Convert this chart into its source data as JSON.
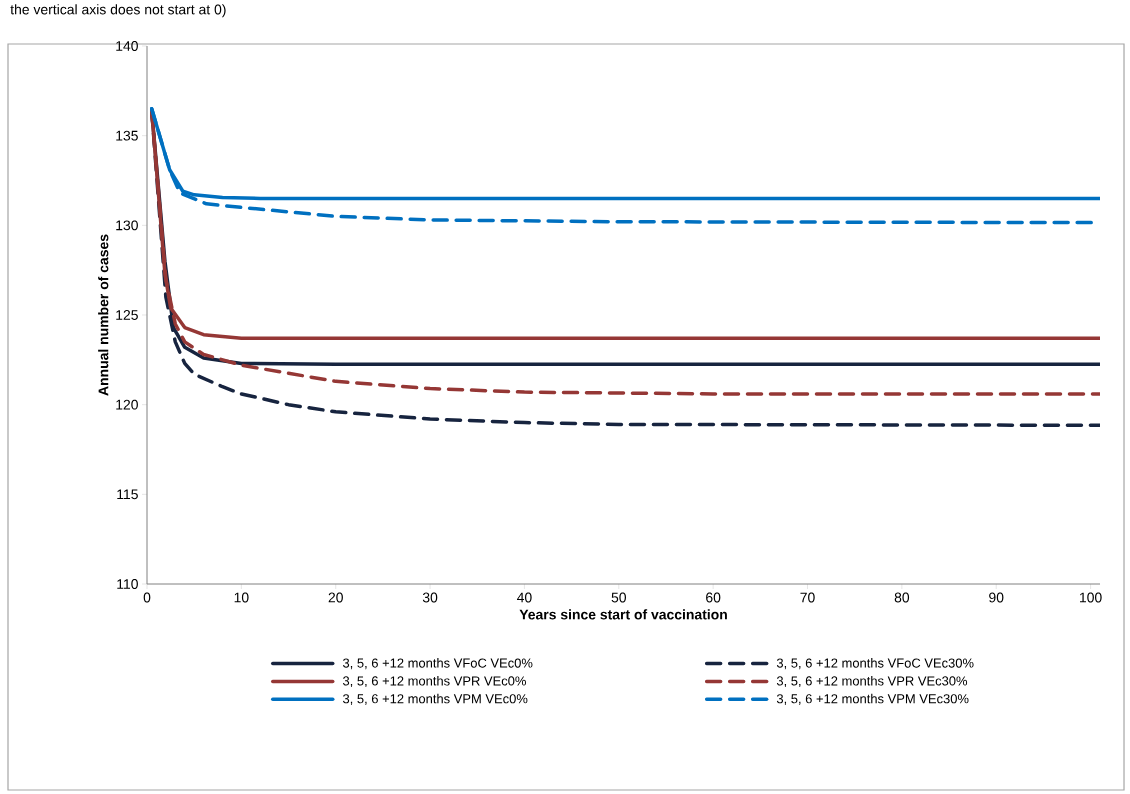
{
  "chart_data": {
    "type": "line",
    "xlabel": "Years since start of vaccination",
    "ylabel": "Annual number of cases",
    "annotations": [
      "the vertical axis does not start at 0)"
    ],
    "xlim": [
      0,
      101
    ],
    "ylim": [
      110,
      140
    ],
    "xticks": [
      0,
      10,
      20,
      30,
      40,
      50,
      60,
      70,
      80,
      90,
      100
    ],
    "yticks": [
      110,
      115,
      120,
      125,
      130,
      135,
      140
    ],
    "grid": false,
    "legend": "bottom",
    "marker": "none",
    "series": [
      {
        "name": "3, 5, 6 +12 months VFoC VEc0%",
        "color": "#17243f",
        "line_style": "solid",
        "x": [
          0.5,
          1.9,
          2.8,
          4,
          6,
          10,
          20,
          50,
          101
        ],
        "values": [
          136.4,
          128,
          124.3,
          123.2,
          122.6,
          122.3,
          122.25,
          122.25,
          122.25
        ]
      },
      {
        "name": "3, 5, 6 +12 months VFoC VEc30%",
        "color": "#17243f",
        "line_style": "dashed",
        "x": [
          0.5,
          2,
          3,
          4,
          5,
          8,
          10,
          15,
          20,
          30,
          40,
          50,
          101
        ],
        "values": [
          136.4,
          126,
          123.5,
          122.3,
          121.7,
          121,
          120.6,
          120,
          119.6,
          119.2,
          119,
          118.9,
          118.85
        ]
      },
      {
        "name": "3, 5, 6 +12 months VPR VEc0%",
        "color": "#953735",
        "line_style": "solid",
        "x": [
          0.5,
          1.9,
          2.5,
          4,
          6,
          10,
          20,
          50,
          101
        ],
        "values": [
          136.4,
          127.3,
          125.4,
          124.3,
          123.9,
          123.7,
          123.7,
          123.7,
          123.7
        ]
      },
      {
        "name": "3, 5, 6 +12 months VPR VEc30%",
        "color": "#953735",
        "line_style": "dashed",
        "x": [
          0.5,
          2,
          3,
          4,
          6,
          10,
          20,
          30,
          40,
          60,
          101
        ],
        "values": [
          136.4,
          127,
          124.5,
          123.5,
          122.8,
          122.2,
          121.3,
          120.9,
          120.7,
          120.6,
          120.6
        ]
      },
      {
        "name": "3, 5, 6 +12 months VPM VEc0%",
        "color": "#0070c0",
        "line_style": "solid",
        "x": [
          0.5,
          2.4,
          3.8,
          5,
          8,
          12,
          50,
          101
        ],
        "values": [
          136.5,
          133.1,
          131.9,
          131.7,
          131.55,
          131.5,
          131.5,
          131.5
        ]
      },
      {
        "name": "3, 5, 6 +12 months VPM VEc30%",
        "color": "#0070c0",
        "line_style": "dashed",
        "x": [
          0.5,
          2.4,
          3.5,
          6.3,
          10,
          20,
          30,
          50,
          101
        ],
        "values": [
          136.5,
          133.1,
          131.8,
          131.2,
          131,
          130.5,
          130.3,
          130.2,
          130.15
        ]
      }
    ]
  }
}
